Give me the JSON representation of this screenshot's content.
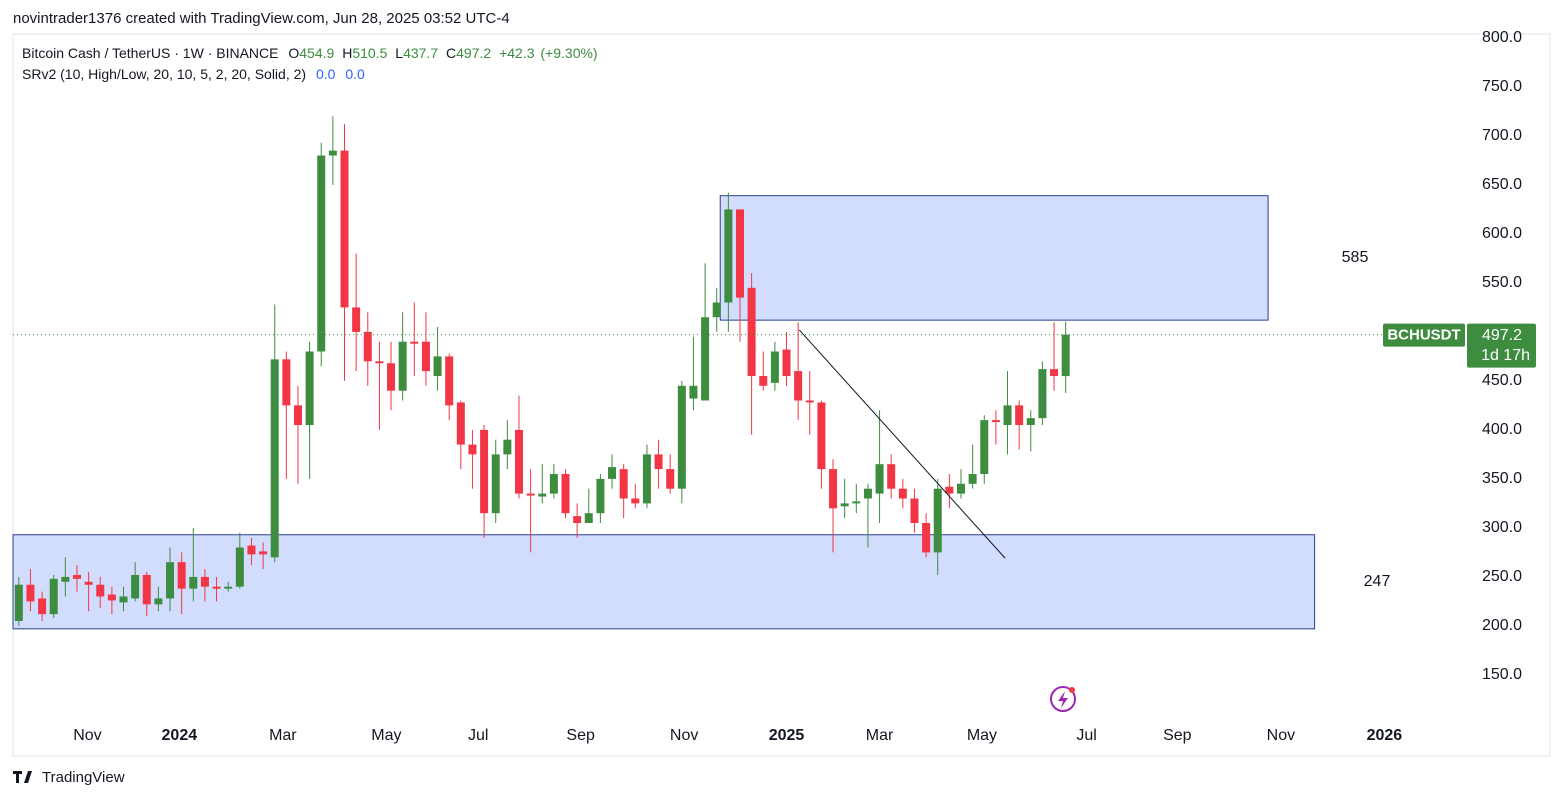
{
  "header": {
    "credit": "novintrader1376 created with TradingView.com, Jun 28, 2025 03:52 UTC-4",
    "footer": "TradingView"
  },
  "chart_data": {
    "type": "candlestick",
    "symbol_title": "Bitcoin Cash / TetherUS · 1W · BINANCE",
    "ohlc_letters": [
      "O",
      "H",
      "L",
      "C"
    ],
    "change": "+42.3",
    "change_pct": "(+9.30%)",
    "indicator": {
      "name": "SRv2 (10, High/Low, 20, 10, 5, 2, 20, Solid, 2)",
      "values": [
        "0.0",
        "0.0"
      ]
    },
    "price_tag": {
      "symbol": "BCHUSDT",
      "countdown": "1d 17h"
    },
    "up_color": "#3d8c40",
    "down_color": "#f23645",
    "x": [
      0,
      1,
      2,
      3,
      4,
      5,
      6,
      7,
      8,
      9,
      10,
      11,
      12,
      13,
      14,
      15,
      16,
      17,
      18,
      19,
      20,
      21,
      22,
      23,
      24,
      25,
      26,
      27,
      28,
      29,
      30,
      31,
      32,
      33,
      34,
      35,
      36,
      37,
      38,
      39,
      40,
      41,
      42,
      43,
      44,
      45,
      46,
      47,
      48,
      49,
      50,
      51,
      52,
      53,
      54,
      55,
      56,
      57,
      58,
      59,
      60,
      61,
      62,
      63,
      64,
      65,
      66,
      67,
      68,
      69,
      70,
      71,
      72,
      73,
      74,
      75,
      76,
      77,
      78,
      79,
      80,
      81,
      82,
      83,
      84,
      85,
      86,
      87,
      88,
      89,
      90
    ],
    "open": [
      205,
      242,
      228,
      212,
      245,
      252,
      245,
      242,
      232,
      224,
      228,
      252,
      222,
      228,
      265,
      238,
      250,
      240,
      238,
      240,
      282,
      276,
      270,
      472,
      425,
      405,
      480,
      680,
      685,
      525,
      500,
      470,
      468,
      440,
      490,
      490,
      455,
      475,
      428,
      385,
      400,
      315,
      375,
      400,
      335,
      332,
      335,
      355,
      312,
      305,
      315,
      350,
      360,
      330,
      325,
      375,
      360,
      340,
      432,
      430,
      515,
      530,
      625,
      545,
      455,
      448,
      482,
      460,
      430,
      428,
      360,
      322,
      325,
      330,
      335,
      365,
      340,
      330,
      305,
      275,
      342,
      335,
      345,
      355,
      410,
      405,
      425,
      405,
      412,
      462,
      454.9
    ],
    "high": [
      250,
      258,
      235,
      252,
      270,
      262,
      255,
      250,
      240,
      240,
      265,
      255,
      240,
      280,
      275,
      300,
      258,
      250,
      245,
      295,
      290,
      285,
      528,
      480,
      445,
      490,
      693,
      720,
      712,
      580,
      520,
      490,
      490,
      520,
      530,
      520,
      505,
      478,
      430,
      400,
      405,
      390,
      410,
      435,
      360,
      365,
      365,
      360,
      325,
      340,
      355,
      375,
      365,
      345,
      385,
      390,
      375,
      450,
      495,
      570,
      545,
      642,
      625,
      560,
      480,
      490,
      500,
      510,
      460,
      430,
      370,
      350,
      345,
      345,
      420,
      375,
      350,
      340,
      315,
      350,
      355,
      360,
      385,
      415,
      420,
      460,
      430,
      420,
      470,
      510,
      510.5
    ],
    "low": [
      200,
      215,
      205,
      208,
      230,
      235,
      215,
      218,
      212,
      215,
      225,
      210,
      215,
      215,
      212,
      225,
      225,
      225,
      235,
      238,
      262,
      258,
      265,
      350,
      345,
      350,
      465,
      650,
      450,
      460,
      445,
      400,
      420,
      430,
      455,
      445,
      440,
      410,
      360,
      340,
      290,
      305,
      360,
      330,
      275,
      325,
      330,
      310,
      290,
      305,
      305,
      340,
      310,
      320,
      320,
      340,
      335,
      325,
      420,
      430,
      500,
      500,
      490,
      395,
      440,
      440,
      445,
      410,
      395,
      340,
      275,
      310,
      315,
      280,
      305,
      330,
      320,
      295,
      270,
      252,
      320,
      330,
      340,
      345,
      385,
      375,
      380,
      378,
      405,
      440,
      437.7
    ],
    "close": [
      242,
      225,
      212,
      248,
      250,
      248,
      242,
      230,
      226,
      230,
      252,
      222,
      228,
      265,
      238,
      250,
      240,
      238,
      240,
      280,
      273,
      273,
      472,
      425,
      405,
      480,
      680,
      685,
      525,
      500,
      470,
      468,
      440,
      490,
      488,
      460,
      475,
      425,
      385,
      375,
      315,
      375,
      390,
      335,
      333,
      335,
      355,
      315,
      305,
      315,
      350,
      362,
      330,
      325,
      375,
      360,
      340,
      445,
      445,
      515,
      530,
      625,
      535,
      455,
      445,
      480,
      455,
      430,
      428,
      360,
      320,
      325,
      327,
      340,
      365,
      340,
      330,
      305,
      275,
      340,
      335,
      345,
      355,
      410,
      408,
      425,
      405,
      412,
      462,
      455,
      497.2
    ],
    "zones": [
      {
        "top": 639,
        "bottom": 512,
        "x_start": 60.3,
        "x_end": 107.4,
        "label": "585"
      },
      {
        "top": 293,
        "bottom": 197,
        "x_start": -0.5,
        "x_end": 111.4,
        "label": "247"
      }
    ],
    "trendline": {
      "x": [
        67.1,
        84.8
      ],
      "y": [
        502,
        269
      ]
    },
    "xlim": [
      -0.5,
      123.9
    ],
    "ylim": [
      106,
      804
    ],
    "xticks": [
      {
        "value": 5.9,
        "label": "Nov"
      },
      {
        "value": 13.8,
        "label": "2024"
      },
      {
        "value": 22.7,
        "label": "Mar"
      },
      {
        "value": 31.6,
        "label": "May"
      },
      {
        "value": 39.5,
        "label": "Jul"
      },
      {
        "value": 48.3,
        "label": "Sep"
      },
      {
        "value": 57.2,
        "label": "Nov"
      },
      {
        "value": 66.0,
        "label": "2025"
      },
      {
        "value": 74.0,
        "label": "Mar"
      },
      {
        "value": 82.8,
        "label": "May"
      },
      {
        "value": 91.8,
        "label": "Jul"
      },
      {
        "value": 99.6,
        "label": "Sep"
      },
      {
        "value": 108.5,
        "label": "Nov"
      },
      {
        "value": 117.4,
        "label": "2026"
      }
    ],
    "yticks": [
      {
        "value": 150,
        "label": "150.0"
      },
      {
        "value": 200,
        "label": "200.0"
      },
      {
        "value": 250,
        "label": "250.0"
      },
      {
        "value": 300,
        "label": "300.0"
      },
      {
        "value": 350,
        "label": "350.0"
      },
      {
        "value": 400,
        "label": "400.0"
      },
      {
        "value": 450,
        "label": "450.0"
      },
      {
        "value": 500,
        "label": "500.0"
      },
      {
        "value": 550,
        "label": "550.0"
      },
      {
        "value": 600,
        "label": "600.0"
      },
      {
        "value": 650,
        "label": "650.0"
      },
      {
        "value": 700,
        "label": "700.0"
      },
      {
        "value": 750,
        "label": "750.0"
      },
      {
        "value": 800,
        "label": "800.0"
      }
    ],
    "grid": false
  }
}
